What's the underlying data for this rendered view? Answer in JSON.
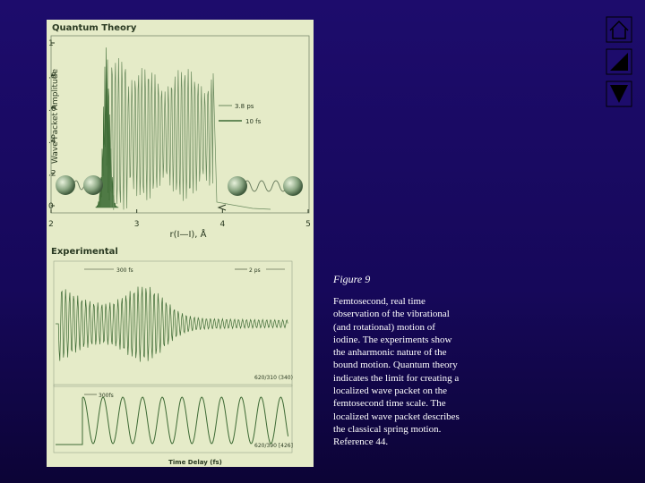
{
  "figure": {
    "top": {
      "title": "Quantum Theory",
      "y_label": "Wave Packet Amplitude",
      "y_ticks": [
        "1",
        ".8",
        ".6",
        ".4",
        ".2",
        "0"
      ],
      "x_ticks": [
        "2",
        "3",
        "4",
        "5"
      ],
      "x_label": "r(I—I), Å",
      "legend": [
        "3.8 ps",
        "10 fs"
      ]
    },
    "bottom": {
      "title": "Experimental",
      "annotations": [
        "300 fs",
        "2 ps",
        "620/310 (340)",
        "300fs",
        "620/390 [426]"
      ],
      "x_label": "Time Delay (fs)"
    }
  },
  "caption": {
    "label": "Figure 9",
    "text": "Femtosecond, real time observation of the vibrational (and rotational) motion of iodine. The experiments show the anharmonic nature of the bound motion. Quantum theory indicates the limit for creating a localized wave packet on the femtosecond time scale. The localized wave packet describes the classical spring motion. Reference 44."
  }
}
